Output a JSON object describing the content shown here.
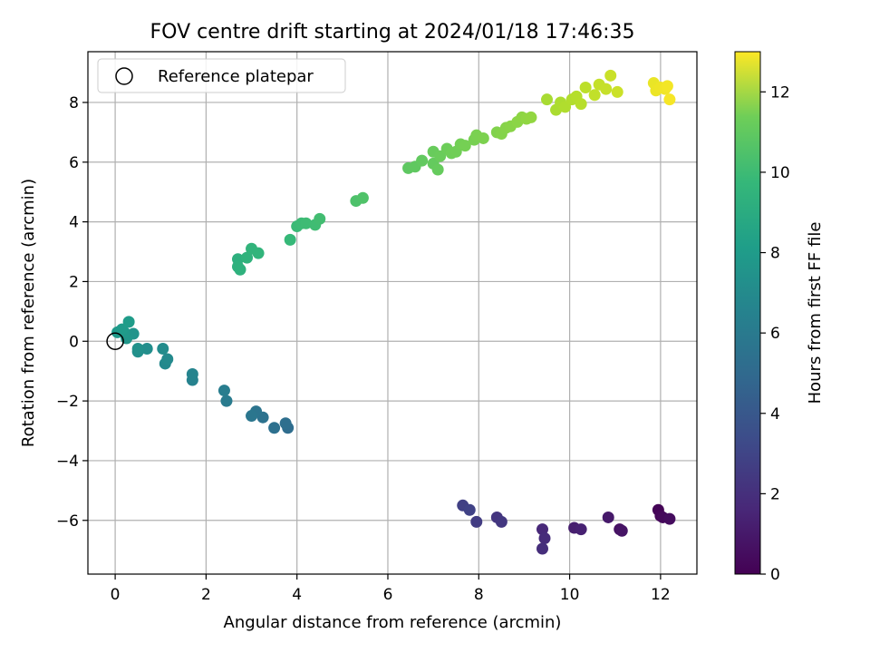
{
  "chart_data": {
    "type": "scatter",
    "title": "FOV centre drift starting at 2024/01/18 17:46:35",
    "xlabel": "Angular distance from reference (arcmin)",
    "ylabel": "Rotation from reference (arcmin)",
    "xlim": [
      -0.6,
      12.8
    ],
    "ylim": [
      -7.8,
      9.7
    ],
    "xticks": [
      "0",
      "2",
      "4",
      "6",
      "8",
      "10",
      "12"
    ],
    "yticks": [
      "−6",
      "−4",
      "−2",
      "0",
      "2",
      "4",
      "6",
      "8"
    ],
    "grid": true,
    "legend": {
      "position": "top-left",
      "entries": [
        {
          "label": "Reference platepar",
          "marker": "open-circle"
        }
      ]
    },
    "colorbar": {
      "label": "Hours from first FF file",
      "colormap": "viridis",
      "range": [
        0,
        13
      ],
      "ticks": [
        "0",
        "2",
        "4",
        "6",
        "8",
        "10",
        "12"
      ]
    },
    "reference_point": {
      "x": 0,
      "y": 0
    },
    "points": [
      {
        "x": 11.95,
        "y": -5.65,
        "c": 0.1
      },
      {
        "x": 12.0,
        "y": -5.85,
        "c": 0.2
      },
      {
        "x": 12.05,
        "y": -5.9,
        "c": 0.3
      },
      {
        "x": 12.2,
        "y": -5.95,
        "c": 0.4
      },
      {
        "x": 11.1,
        "y": -6.3,
        "c": 0.6
      },
      {
        "x": 11.15,
        "y": -6.35,
        "c": 0.7
      },
      {
        "x": 10.85,
        "y": -5.9,
        "c": 0.9
      },
      {
        "x": 10.1,
        "y": -6.25,
        "c": 1.1
      },
      {
        "x": 10.25,
        "y": -6.3,
        "c": 1.2
      },
      {
        "x": 9.4,
        "y": -6.3,
        "c": 1.5
      },
      {
        "x": 9.45,
        "y": -6.6,
        "c": 1.6
      },
      {
        "x": 9.4,
        "y": -6.95,
        "c": 1.7
      },
      {
        "x": 8.4,
        "y": -5.9,
        "c": 2.0
      },
      {
        "x": 8.5,
        "y": -6.05,
        "c": 2.1
      },
      {
        "x": 7.95,
        "y": -6.05,
        "c": 2.3
      },
      {
        "x": 7.65,
        "y": -5.5,
        "c": 2.5
      },
      {
        "x": 7.8,
        "y": -5.65,
        "c": 2.6
      },
      {
        "x": 3.8,
        "y": -2.9,
        "c": 4.6
      },
      {
        "x": 3.75,
        "y": -2.75,
        "c": 4.7
      },
      {
        "x": 3.5,
        "y": -2.9,
        "c": 4.8
      },
      {
        "x": 3.25,
        "y": -2.55,
        "c": 4.9
      },
      {
        "x": 3.1,
        "y": -2.35,
        "c": 5.0
      },
      {
        "x": 3.0,
        "y": -2.5,
        "c": 5.1
      },
      {
        "x": 2.45,
        "y": -2.0,
        "c": 5.4
      },
      {
        "x": 2.4,
        "y": -1.65,
        "c": 5.5
      },
      {
        "x": 1.7,
        "y": -1.3,
        "c": 5.8
      },
      {
        "x": 1.7,
        "y": -1.1,
        "c": 5.9
      },
      {
        "x": 1.1,
        "y": -0.75,
        "c": 6.1
      },
      {
        "x": 1.15,
        "y": -0.6,
        "c": 6.2
      },
      {
        "x": 1.05,
        "y": -0.25,
        "c": 6.3
      },
      {
        "x": 0.7,
        "y": -0.25,
        "c": 6.4
      },
      {
        "x": 0.5,
        "y": -0.35,
        "c": 6.5
      },
      {
        "x": 0.5,
        "y": -0.25,
        "c": 6.55
      },
      {
        "x": 0.4,
        "y": 0.25,
        "c": 6.7
      },
      {
        "x": 0.25,
        "y": 0.1,
        "c": 6.8
      },
      {
        "x": 0.2,
        "y": 0.3,
        "c": 6.9
      },
      {
        "x": 0.05,
        "y": 0.3,
        "c": 7.0
      },
      {
        "x": 0.15,
        "y": 0.4,
        "c": 7.05
      },
      {
        "x": 0.3,
        "y": 0.65,
        "c": 7.1
      },
      {
        "x": 2.7,
        "y": 2.75,
        "c": 8.2
      },
      {
        "x": 2.7,
        "y": 2.5,
        "c": 8.25
      },
      {
        "x": 2.75,
        "y": 2.4,
        "c": 8.3
      },
      {
        "x": 2.9,
        "y": 2.8,
        "c": 8.4
      },
      {
        "x": 3.0,
        "y": 3.1,
        "c": 8.45
      },
      {
        "x": 3.15,
        "y": 2.95,
        "c": 8.5
      },
      {
        "x": 3.85,
        "y": 3.4,
        "c": 8.7
      },
      {
        "x": 4.0,
        "y": 3.85,
        "c": 8.8
      },
      {
        "x": 4.1,
        "y": 3.95,
        "c": 8.85
      },
      {
        "x": 4.2,
        "y": 3.95,
        "c": 8.9
      },
      {
        "x": 4.4,
        "y": 3.9,
        "c": 8.95
      },
      {
        "x": 4.5,
        "y": 4.1,
        "c": 9.0
      },
      {
        "x": 5.3,
        "y": 4.7,
        "c": 9.3
      },
      {
        "x": 5.45,
        "y": 4.8,
        "c": 9.35
      },
      {
        "x": 6.45,
        "y": 5.8,
        "c": 9.7
      },
      {
        "x": 6.6,
        "y": 5.85,
        "c": 9.75
      },
      {
        "x": 6.75,
        "y": 6.05,
        "c": 9.8
      },
      {
        "x": 7.0,
        "y": 5.95,
        "c": 9.85
      },
      {
        "x": 7.1,
        "y": 5.75,
        "c": 9.9
      },
      {
        "x": 7.0,
        "y": 6.35,
        "c": 9.95
      },
      {
        "x": 7.15,
        "y": 6.2,
        "c": 10.0
      },
      {
        "x": 7.3,
        "y": 6.45,
        "c": 10.05
      },
      {
        "x": 7.4,
        "y": 6.3,
        "c": 10.1
      },
      {
        "x": 7.5,
        "y": 6.35,
        "c": 10.15
      },
      {
        "x": 7.6,
        "y": 6.6,
        "c": 10.2
      },
      {
        "x": 7.7,
        "y": 6.55,
        "c": 10.25
      },
      {
        "x": 7.9,
        "y": 6.75,
        "c": 10.3
      },
      {
        "x": 7.95,
        "y": 6.9,
        "c": 10.35
      },
      {
        "x": 8.1,
        "y": 6.8,
        "c": 10.4
      },
      {
        "x": 8.4,
        "y": 7.0,
        "c": 10.5
      },
      {
        "x": 8.5,
        "y": 6.95,
        "c": 10.55
      },
      {
        "x": 8.6,
        "y": 7.15,
        "c": 10.6
      },
      {
        "x": 8.7,
        "y": 7.2,
        "c": 10.65
      },
      {
        "x": 8.85,
        "y": 7.35,
        "c": 10.7
      },
      {
        "x": 8.95,
        "y": 7.5,
        "c": 10.75
      },
      {
        "x": 9.05,
        "y": 7.45,
        "c": 10.8
      },
      {
        "x": 9.15,
        "y": 7.5,
        "c": 10.85
      },
      {
        "x": 9.5,
        "y": 8.1,
        "c": 11.3
      },
      {
        "x": 9.7,
        "y": 7.75,
        "c": 11.35
      },
      {
        "x": 9.8,
        "y": 8.0,
        "c": 11.4
      },
      {
        "x": 9.9,
        "y": 7.85,
        "c": 11.45
      },
      {
        "x": 10.05,
        "y": 8.1,
        "c": 11.5
      },
      {
        "x": 10.15,
        "y": 8.2,
        "c": 11.55
      },
      {
        "x": 10.25,
        "y": 7.95,
        "c": 11.6
      },
      {
        "x": 10.35,
        "y": 8.5,
        "c": 11.7
      },
      {
        "x": 10.55,
        "y": 8.25,
        "c": 11.8
      },
      {
        "x": 10.65,
        "y": 8.6,
        "c": 11.85
      },
      {
        "x": 10.8,
        "y": 8.45,
        "c": 11.9
      },
      {
        "x": 10.9,
        "y": 8.9,
        "c": 11.95
      },
      {
        "x": 11.05,
        "y": 8.35,
        "c": 12.0
      },
      {
        "x": 11.85,
        "y": 8.65,
        "c": 12.6
      },
      {
        "x": 11.9,
        "y": 8.4,
        "c": 12.65
      },
      {
        "x": 12.0,
        "y": 8.5,
        "c": 12.7
      },
      {
        "x": 12.1,
        "y": 8.45,
        "c": 12.75
      },
      {
        "x": 12.15,
        "y": 8.55,
        "c": 12.8
      },
      {
        "x": 12.2,
        "y": 8.1,
        "c": 12.85
      }
    ]
  }
}
